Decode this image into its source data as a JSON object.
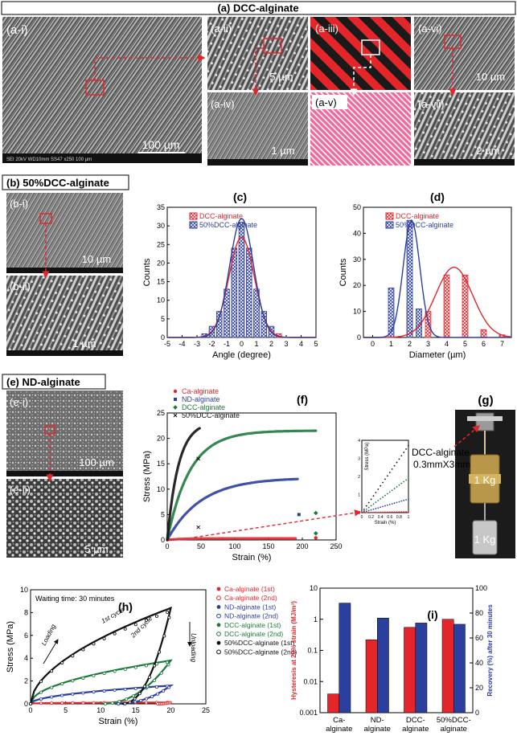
{
  "sections": {
    "a": {
      "title": "(a) DCC-alginate",
      "panels": {
        "ai": {
          "label": "(a-i)",
          "scale": "100 µm",
          "info": "SEI   20kV   WD10mm   SS47          x250          100 µm"
        },
        "aii": {
          "label": "(a-ii)",
          "scale": "5 µm"
        },
        "aiii": {
          "label": "(a-iii)"
        },
        "aiv": {
          "label": "(a-iv)",
          "scale": "1 µm"
        },
        "av": {
          "label": "(a-v)"
        },
        "avi": {
          "label": "(a-vi)",
          "scale": "10 µm"
        },
        "avii": {
          "label": "(a-vii)",
          "scale": "2 µm"
        }
      }
    },
    "b": {
      "title": "(b) 50%DCC-alginate",
      "panels": {
        "bi": {
          "label": "(b-i)",
          "scale": "10 µm"
        },
        "bii": {
          "label": "(b-ii)",
          "scale": "1 µm"
        }
      }
    },
    "e": {
      "title": "(e) ND-alginate",
      "panels": {
        "ei": {
          "label": "(e-i)",
          "scale": "100 µm"
        },
        "eii": {
          "label": "(e-ii)",
          "scale": "5 µm"
        }
      }
    },
    "g": {
      "label": "(g)",
      "annotation_line1": "DCC-alginate",
      "annotation_line2": "0.3mmX3mm",
      "weight_top": "1 Kg",
      "weight_bottom": "1 Kg"
    }
  },
  "colors": {
    "red": "#e4262b",
    "blue": "#2b3f9e",
    "green": "#1e7a3c",
    "black": "#111111",
    "ylabel_right": "#2b3f9e",
    "ylabel_left": "#e4262b"
  },
  "chart_data": [
    {
      "id": "c",
      "panel_label": "(c)",
      "type": "bar",
      "xlabel": "Angle (degree)",
      "ylabel": "Counts",
      "xlim": [
        -5,
        5
      ],
      "ylim": [
        0,
        35
      ],
      "xticks": [
        -5,
        -4,
        -3,
        -2,
        -1,
        0,
        1,
        2,
        3,
        4,
        5
      ],
      "yticks": [
        0,
        5,
        10,
        15,
        20,
        25,
        30,
        35
      ],
      "legend": [
        "DCC-alginate",
        "50%DCC-alginate"
      ],
      "series": [
        {
          "name": "DCC-alginate",
          "color": "red",
          "bins": [
            -2,
            -1.5,
            -1,
            -0.5,
            0,
            0.5,
            1,
            1.5,
            2,
            2.5
          ],
          "values": [
            2,
            6,
            9,
            19,
            27,
            21,
            9,
            5,
            2,
            1
          ],
          "fit_mean": 0,
          "fit_sd": 0.85,
          "fit_peak": 27
        },
        {
          "name": "50%DCC-alginate",
          "color": "blue",
          "bins": [
            -2.5,
            -2,
            -1.5,
            -1,
            -0.5,
            0,
            0.5,
            1,
            1.5,
            2
          ],
          "values": [
            1,
            3,
            7,
            13,
            24,
            31,
            24,
            13,
            7,
            3
          ],
          "fit_mean": 0,
          "fit_sd": 0.8,
          "fit_peak": 32
        }
      ]
    },
    {
      "id": "d",
      "panel_label": "(d)",
      "type": "bar",
      "xlabel": "Diameter (µm)",
      "ylabel": "Counts",
      "xlim": [
        -0.5,
        7.5
      ],
      "ylim": [
        0,
        50
      ],
      "xticks": [
        0,
        1,
        2,
        3,
        4,
        5,
        6,
        7
      ],
      "yticks": [
        0,
        10,
        20,
        30,
        40,
        50
      ],
      "legend": [
        "DCC-alginate",
        "50%DCC-alginate"
      ],
      "series": [
        {
          "name": "DCC-alginate",
          "color": "red",
          "bins": [
            2,
            3,
            4,
            5,
            6,
            7
          ],
          "values": [
            12,
            10,
            24,
            24,
            3,
            1
          ],
          "fit_mean": 4.4,
          "fit_sd": 1.0,
          "fit_peak": 27
        },
        {
          "name": "50%DCC-alginate",
          "color": "blue",
          "bins": [
            1,
            2,
            2.5
          ],
          "values": [
            19,
            45,
            11
          ],
          "fit_mean": 2.1,
          "fit_sd": 0.45,
          "fit_peak": 45
        }
      ]
    },
    {
      "id": "f",
      "panel_label": "(f)",
      "type": "scatter",
      "xlabel": "Strain (%)",
      "ylabel": "Stress (MPa)",
      "xlim": [
        0,
        250
      ],
      "ylim": [
        0,
        25
      ],
      "xticks": [
        0,
        50,
        100,
        150,
        200,
        250
      ],
      "yticks": [
        0,
        5,
        10,
        15,
        20,
        25
      ],
      "legend": [
        "Ca-alginate",
        "ND-alginate",
        "DCC-alginate",
        "50%DCC-alginate"
      ],
      "series": [
        {
          "name": "Ca-alginate",
          "color": "red",
          "marker": "circle",
          "curve": {
            "max_x": 190,
            "max_y": 0.3,
            "k": 0.05
          },
          "outliers": [
            [
              220,
              0.4
            ]
          ]
        },
        {
          "name": "ND-alginate",
          "color": "blue",
          "marker": "square",
          "curve": {
            "max_x": 193,
            "max_y": 12,
            "k": 0.02
          },
          "outliers": [
            [
              195,
              5
            ]
          ]
        },
        {
          "name": "DCC-alginate",
          "color": "green",
          "marker": "diamond",
          "curve": {
            "max_x": 220,
            "max_y": 21.5,
            "k": 0.03
          },
          "outliers": [
            [
              220,
              1.3
            ],
            [
              220,
              5.3
            ]
          ]
        },
        {
          "name": "50%DCC-alginate",
          "color": "black",
          "marker": "x",
          "curve": {
            "max_x": 48,
            "max_y": 22,
            "k": 0.06
          },
          "outliers": [
            [
              46,
              16
            ],
            [
              46,
              2.5
            ]
          ]
        }
      ],
      "inset": {
        "xlabel": "Strain (%)",
        "ylabel": "Stress (MPa)",
        "xlim": [
          0,
          1
        ],
        "ylim": [
          0,
          4
        ],
        "xticks": [
          "0",
          "0.2",
          "0.4",
          "0.6",
          "0.8",
          "1"
        ],
        "yticks": [
          "0",
          "1",
          "2",
          "3",
          "4"
        ],
        "series": [
          {
            "name": "50%DCC-alginate",
            "slope": 3.7
          },
          {
            "name": "DCC-alginate",
            "slope": 1.9
          },
          {
            "name": "ND-alginate",
            "slope": 0.75
          },
          {
            "name": "Ca-alginate",
            "slope": 0.05
          }
        ]
      }
    },
    {
      "id": "h",
      "panel_label": "(h)",
      "type": "line",
      "xlabel": "Strain (%)",
      "ylabel": "Stress (MPa)",
      "xlim": [
        0,
        25
      ],
      "ylim": [
        0,
        10
      ],
      "xticks": [
        0,
        5,
        10,
        15,
        20,
        25
      ],
      "yticks": [
        0,
        2,
        4,
        6,
        8,
        10
      ],
      "annotations": {
        "waiting": "Waiting time: 30 minutes",
        "loading": "Loading",
        "first": "1st cycle",
        "second": "2nd cycle",
        "unloading": "Unloading"
      },
      "legend": [
        "Ca-alginate (1st)",
        "Ca-alginate (2nd)",
        "ND-alginate (1st)",
        "ND-alginate (2nd)",
        "DCC-alginate (1st)",
        "DCC-alginate (2nd)",
        "50%DCC-alginate (1st)",
        "50%DCC-alginate (2nd)"
      ],
      "loops": [
        {
          "name": "Ca-alginate",
          "color": "red",
          "peak": 0.12,
          "residual": 18,
          "factor": 0.3
        },
        {
          "name": "ND-alginate",
          "color": "blue",
          "peak": 1.6,
          "residual": 12,
          "factor": 0.5
        },
        {
          "name": "DCC-alginate",
          "color": "green",
          "peak": 3.8,
          "residual": 10,
          "factor": 0.5
        },
        {
          "name": "50%DCC-alginate",
          "color": "black",
          "peak": 8.4,
          "residual": 13,
          "factor": 0.55
        }
      ]
    },
    {
      "id": "i",
      "panel_label": "(i)",
      "type": "bar",
      "ylabel_left": "Hysteresis at 20% strain (MJ/m³)",
      "ylabel_right": "Recovery (%) after 30 minutes",
      "categories": [
        "Ca-\nalginate",
        "ND-\nalginate",
        "DCC-\nalginate",
        "50%DCC-\nalginate"
      ],
      "left_ticks": [
        "0.001",
        "0.01",
        "0.1",
        "1",
        "10"
      ],
      "right_ticks": [
        "0",
        "20",
        "40",
        "60",
        "80",
        "100"
      ],
      "ylim_left": [
        0.001,
        10
      ],
      "ylim_right": [
        0,
        100
      ],
      "series": [
        {
          "name": "Hysteresis",
          "color": "red",
          "axis": "left",
          "values": [
            0.004,
            0.22,
            0.55,
            1.0
          ]
        },
        {
          "name": "Recovery",
          "color": "blue",
          "axis": "right",
          "values": [
            88,
            76,
            72,
            71
          ]
        }
      ]
    }
  ]
}
